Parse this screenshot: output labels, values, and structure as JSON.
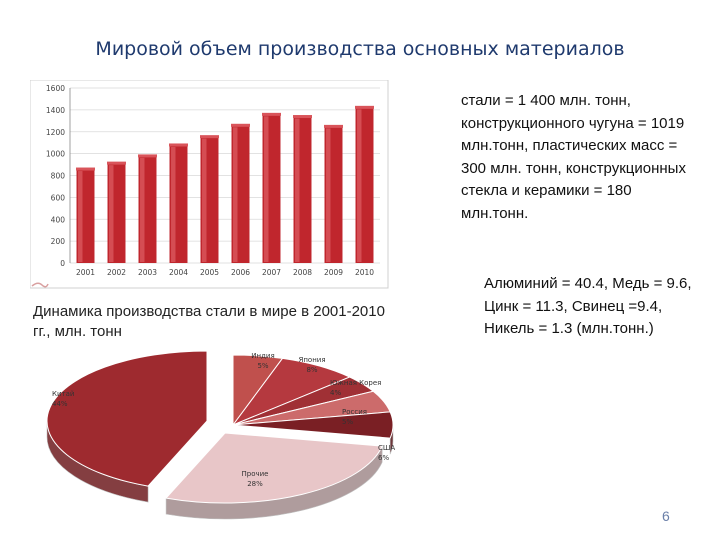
{
  "title": "Мировой объем производства основных материалов",
  "chart_data": [
    {
      "type": "bar",
      "categories": [
        "2001",
        "2002",
        "2003",
        "2004",
        "2005",
        "2006",
        "2007",
        "2008",
        "2009",
        "2010"
      ],
      "values": [
        850,
        904,
        970,
        1070,
        1146,
        1250,
        1350,
        1330,
        1240,
        1414
      ],
      "ylim": [
        0,
        1600
      ],
      "yticks": [
        "0",
        "200",
        "400",
        "600",
        "800",
        "1000",
        "1200",
        "1400",
        "1600"
      ],
      "grid": true,
      "bar_color": "#c0262d"
    },
    {
      "type": "pie",
      "labels": [
        "Китай",
        "Индия",
        "Япония",
        "Южная Корея",
        "Россия",
        "США",
        "Прочие"
      ],
      "values": [
        44,
        5,
        8,
        4,
        5,
        6,
        28
      ],
      "value_labels": [
        "44%",
        "5%",
        "8%",
        "4%",
        "5%",
        "6%",
        "28%"
      ],
      "colors": [
        "#9e2a2f",
        "#c0504d",
        "#b5393f",
        "#a03035",
        "#cc6b6b",
        "#7a1f24",
        "#e8c6c8"
      ]
    }
  ],
  "bar_caption": "Динамика производства стали в мире в 2001-2010 гг., млн. тонн",
  "notes": {
    "note1": "стали = 1 400 млн. тонн, конструкционного чугуна = 1019 млн.тонн, пластических масс = 300 млн. тонн, конструкционных стекла и керамики = 180 млн.тонн.",
    "note2": "Алюминий = 40.4, Медь = 9.6, Цинк = 11.3, Свинец =9.4, Никель = 1.3 (млн.тонн.)"
  },
  "page_number": "6"
}
